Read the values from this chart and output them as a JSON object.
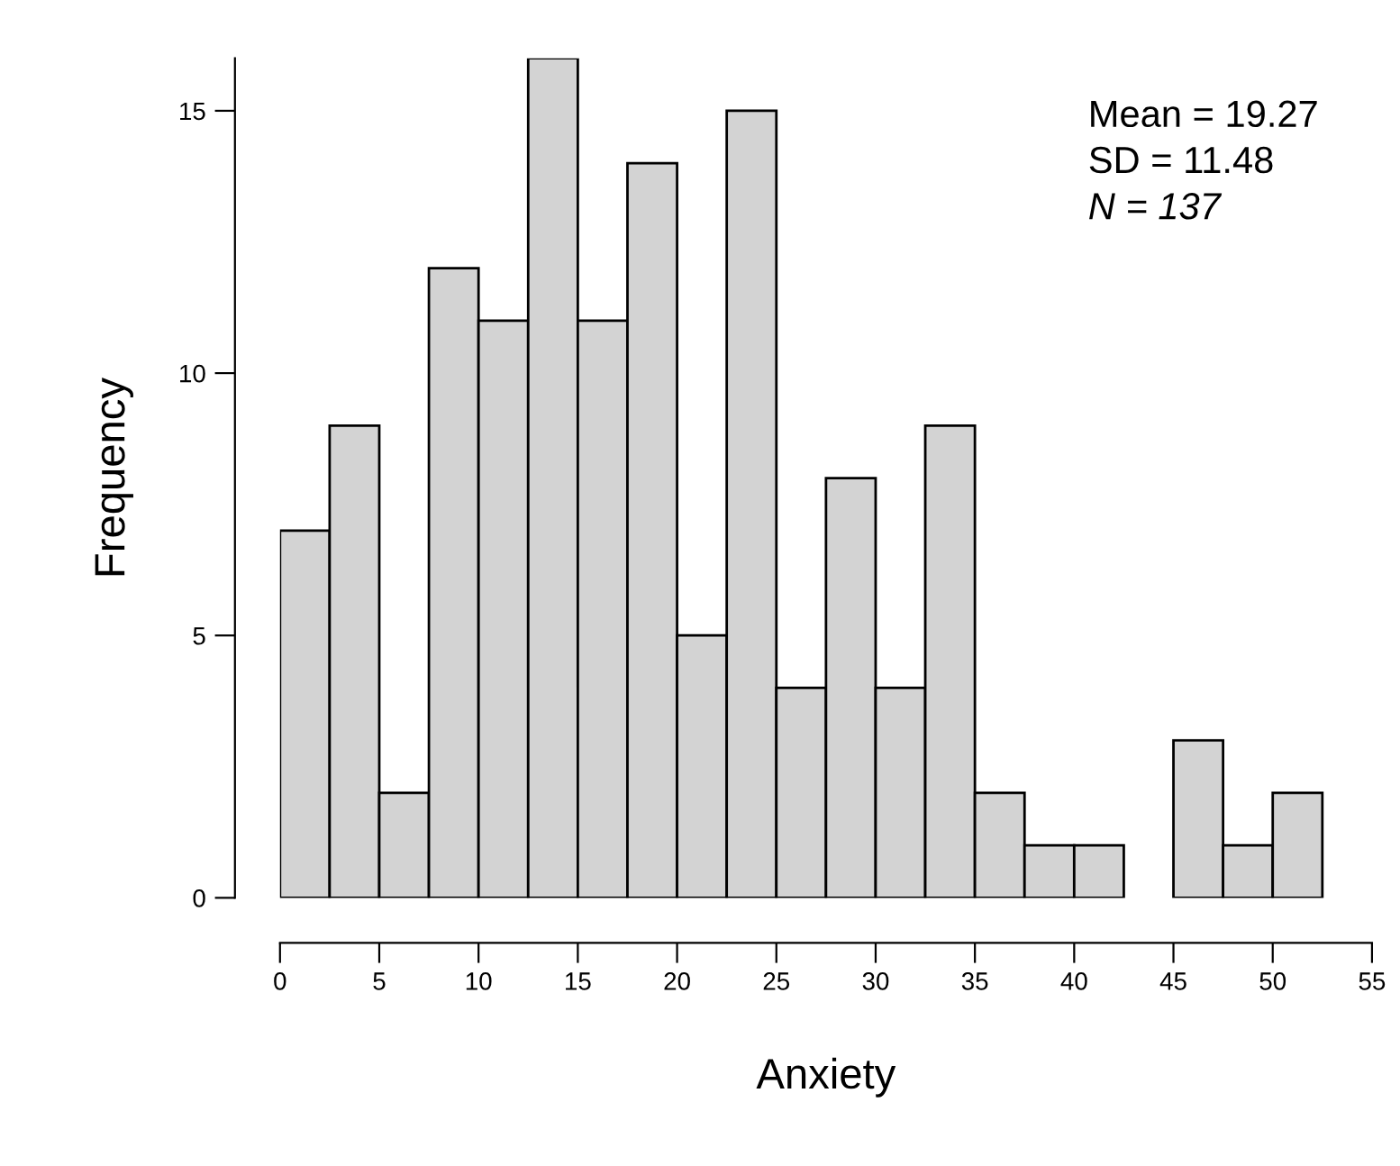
{
  "chart_data": {
    "type": "histogram",
    "xlabel": "Anxiety",
    "ylabel": "Frequency",
    "bins": [
      0,
      2.5,
      5,
      7.5,
      10,
      12.5,
      15,
      17.5,
      20,
      22.5,
      25,
      27.5,
      30,
      32.5,
      35,
      37.5,
      40,
      42.5,
      45,
      47.5,
      50,
      52.5,
      55
    ],
    "values": [
      7,
      9,
      2,
      12,
      11,
      16,
      11,
      14,
      5,
      15,
      4,
      8,
      4,
      9,
      2,
      1,
      1,
      0,
      3,
      1,
      2,
      0
    ],
    "color": "#d3d3d3",
    "xlim": [
      0,
      55
    ],
    "xticks": [
      0,
      5,
      10,
      15,
      20,
      25,
      30,
      35,
      40,
      45,
      50,
      55
    ],
    "ylim": [
      0,
      16
    ],
    "yticks": [
      0,
      5,
      10,
      15
    ],
    "grid": false,
    "legend": false,
    "annotations": [
      "Mean = 19.27",
      "SD = 11.48",
      "N = 137"
    ]
  }
}
